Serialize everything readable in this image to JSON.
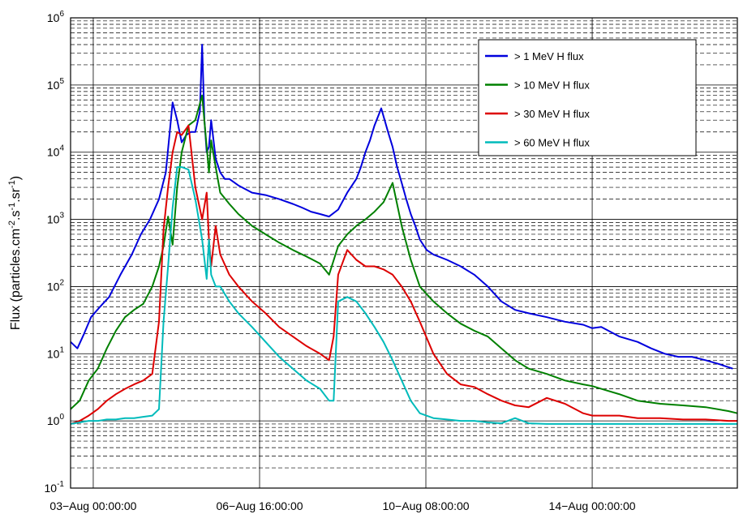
{
  "chart_data": {
    "type": "line",
    "title": "",
    "xlabel": "",
    "ylabel": {
      "base": "Flux (particles.cm",
      "exp1": "-2",
      "mid1": ".s",
      "exp2": "-1",
      "mid2": ".sr",
      "exp3": "-1",
      "end": ")"
    },
    "yscale": "log",
    "ylim": [
      0.1,
      1000000
    ],
    "xlim_days_from_start": [
      -0.5,
      14.2
    ],
    "yticks": [
      {
        "value": 0.1,
        "base": "10",
        "exp": "-1"
      },
      {
        "value": 1,
        "base": "10",
        "exp": "0"
      },
      {
        "value": 10,
        "base": "10",
        "exp": "1"
      },
      {
        "value": 100,
        "base": "10",
        "exp": "2"
      },
      {
        "value": 1000,
        "base": "10",
        "exp": "3"
      },
      {
        "value": 10000,
        "base": "10",
        "exp": "4"
      },
      {
        "value": 100000,
        "base": "10",
        "exp": "5"
      },
      {
        "value": 1000000,
        "base": "10",
        "exp": "6"
      }
    ],
    "xticks": [
      {
        "day": 0,
        "label": "03−Aug 00:00:00"
      },
      {
        "day": 3.667,
        "label": "06−Aug 16:00:00"
      },
      {
        "day": 7.333,
        "label": "10−Aug 08:00:00"
      },
      {
        "day": 11,
        "label": "14−Aug 00:00:00"
      }
    ],
    "grid": true,
    "legend_position": "top-right",
    "series": [
      {
        "name": "> 1 MeV H flux",
        "color": "#0000dd",
        "x": [
          -0.5,
          -0.35,
          -0.2,
          -0.05,
          0.15,
          0.35,
          0.6,
          0.85,
          1.05,
          1.25,
          1.45,
          1.6,
          1.75,
          1.85,
          1.95,
          2.05,
          2.15,
          2.25,
          2.35,
          2.4,
          2.45,
          2.5,
          2.55,
          2.6,
          2.7,
          2.8,
          2.9,
          3.0,
          3.2,
          3.5,
          3.8,
          4.1,
          4.4,
          4.6,
          4.8,
          5.0,
          5.2,
          5.4,
          5.6,
          5.8,
          5.9,
          6.0,
          6.1,
          6.2,
          6.35,
          6.5,
          6.6,
          6.7,
          6.8,
          6.9,
          7.0,
          7.1,
          7.2,
          7.35,
          7.5,
          7.8,
          8.1,
          8.4,
          8.7,
          9.0,
          9.3,
          9.6,
          10.0,
          10.4,
          10.8,
          11.0,
          11.2,
          11.6,
          12.0,
          12.3,
          12.6,
          12.9,
          13.2,
          13.5,
          13.8,
          14.1
        ],
        "y": [
          15,
          12,
          20,
          35,
          50,
          70,
          150,
          300,
          600,
          1000,
          2000,
          5000,
          55000,
          30000,
          14000,
          18000,
          20000,
          20000,
          40000,
          400000,
          30000,
          10000,
          12000,
          30000,
          8000,
          5000,
          4000,
          4000,
          3200,
          2500,
          2300,
          2000,
          1700,
          1500,
          1300,
          1200,
          1100,
          1400,
          2500,
          4000,
          6000,
          10000,
          15000,
          25000,
          45000,
          20000,
          12000,
          6000,
          3500,
          2000,
          1200,
          800,
          500,
          350,
          300,
          250,
          200,
          150,
          100,
          60,
          45,
          40,
          35,
          30,
          27,
          24,
          25,
          18,
          15,
          12,
          10,
          9,
          9,
          8,
          7,
          6
        ]
      },
      {
        "name": "> 10 MeV H flux",
        "color": "#008000",
        "x": [
          -0.5,
          -0.3,
          -0.1,
          0.1,
          0.3,
          0.5,
          0.7,
          0.9,
          1.1,
          1.3,
          1.45,
          1.55,
          1.65,
          1.75,
          1.85,
          1.95,
          2.1,
          2.25,
          2.4,
          2.5,
          2.55,
          2.6,
          2.7,
          2.8,
          3.0,
          3.2,
          3.5,
          3.8,
          4.1,
          4.4,
          4.7,
          5.0,
          5.2,
          5.4,
          5.6,
          5.8,
          6.0,
          6.2,
          6.4,
          6.6,
          6.8,
          7.0,
          7.2,
          7.5,
          7.8,
          8.1,
          8.4,
          8.7,
          9.0,
          9.3,
          9.6,
          10.0,
          10.4,
          10.8,
          11.0,
          11.2,
          11.6,
          12.0,
          12.5,
          13.0,
          13.5,
          14.0,
          14.2
        ],
        "y": [
          1.5,
          2,
          4,
          6,
          12,
          22,
          35,
          45,
          55,
          100,
          200,
          400,
          1100,
          420,
          3000,
          10000,
          25000,
          30000,
          70000,
          12000,
          5000,
          15000,
          6000,
          2500,
          1700,
          1200,
          800,
          600,
          450,
          350,
          280,
          220,
          150,
          400,
          600,
          800,
          1000,
          1300,
          1800,
          3500,
          800,
          250,
          100,
          60,
          40,
          28,
          22,
          18,
          12,
          8,
          6,
          5,
          4,
          3.5,
          3.3,
          3,
          2.5,
          2,
          1.8,
          1.7,
          1.6,
          1.4,
          1.3
        ]
      },
      {
        "name": "> 30 MeV H flux",
        "color": "#dd0000",
        "x": [
          -0.5,
          -0.3,
          -0.1,
          0.1,
          0.3,
          0.5,
          0.7,
          0.9,
          1.1,
          1.3,
          1.45,
          1.55,
          1.65,
          1.75,
          1.85,
          1.95,
          2.1,
          2.25,
          2.4,
          2.5,
          2.55,
          2.6,
          2.7,
          2.8,
          3.0,
          3.2,
          3.5,
          3.8,
          4.1,
          4.4,
          4.7,
          5.0,
          5.2,
          5.3,
          5.4,
          5.6,
          5.8,
          6.0,
          6.2,
          6.4,
          6.6,
          6.8,
          7.0,
          7.2,
          7.5,
          7.8,
          8.1,
          8.4,
          8.7,
          9.0,
          9.3,
          9.6,
          10.0,
          10.4,
          10.8,
          11.0,
          11.2,
          11.6,
          12.0,
          12.5,
          13.0,
          13.5,
          14.0,
          14.2
        ],
        "y": [
          0.9,
          1.0,
          1.2,
          1.5,
          2,
          2.5,
          3,
          3.5,
          4,
          5,
          30,
          700,
          3000,
          10000,
          20000,
          18000,
          25000,
          3000,
          1000,
          2500,
          500,
          200,
          800,
          300,
          150,
          100,
          60,
          40,
          25,
          18,
          13,
          10,
          8,
          18,
          150,
          350,
          250,
          200,
          200,
          180,
          150,
          100,
          60,
          30,
          10,
          5,
          3.5,
          3.2,
          2.5,
          2,
          1.7,
          1.6,
          2.2,
          1.8,
          1.3,
          1.2,
          1.2,
          1.2,
          1.1,
          1.1,
          1.05,
          1.05,
          1.0,
          1.0
        ]
      },
      {
        "name": "> 60 MeV H flux",
        "color": "#00bbbb",
        "x": [
          -0.5,
          -0.3,
          -0.1,
          0.1,
          0.3,
          0.5,
          0.7,
          0.9,
          1.1,
          1.3,
          1.45,
          1.55,
          1.65,
          1.75,
          1.85,
          1.95,
          2.1,
          2.25,
          2.4,
          2.5,
          2.55,
          2.6,
          2.7,
          2.8,
          3.0,
          3.2,
          3.5,
          3.8,
          4.1,
          4.4,
          4.7,
          5.0,
          5.2,
          5.3,
          5.4,
          5.6,
          5.8,
          6.0,
          6.2,
          6.4,
          6.6,
          6.8,
          7.0,
          7.2,
          7.5,
          7.8,
          8.1,
          8.4,
          8.7,
          9.0,
          9.3,
          9.6,
          10.0,
          10.4,
          10.8,
          11.0,
          11.2,
          11.6,
          12.0,
          12.5,
          13.0,
          13.5,
          14.0,
          14.2
        ],
        "y": [
          0.9,
          0.95,
          1.0,
          1.0,
          1.05,
          1.05,
          1.1,
          1.1,
          1.15,
          1.2,
          1.5,
          30,
          200,
          1500,
          6000,
          6000,
          5500,
          2000,
          500,
          130,
          500,
          150,
          100,
          100,
          60,
          40,
          25,
          15,
          9,
          6,
          4,
          3,
          2,
          2,
          60,
          70,
          60,
          40,
          25,
          15,
          8,
          4,
          2,
          1.3,
          1.1,
          1.05,
          1.0,
          1.0,
          0.95,
          0.92,
          1.1,
          0.92,
          0.9,
          0.9,
          0.9,
          0.9,
          0.9,
          0.9,
          0.9,
          0.9,
          0.9,
          0.9,
          0.9,
          0.9
        ]
      }
    ]
  }
}
